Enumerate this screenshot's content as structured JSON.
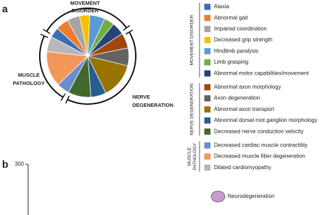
{
  "chart_data": [
    {
      "type": "pie",
      "panel_label": "a",
      "groups": [
        {
          "name": "MOVEMENT DISORDER",
          "categories": [
            "Ataxia",
            "Abnormal gait",
            "Impaired coordination",
            "Decreased grip strength",
            "Hindlimb paralysis",
            "Limb grasping",
            "Abnormal motor capabilities/movement"
          ],
          "values": [
            4,
            5,
            5,
            4,
            6,
            4,
            5
          ],
          "colors": [
            "#3a6fb7",
            "#ef7d31",
            "#a5a5a5",
            "#f5c000",
            "#5b9bd5",
            "#70ad47",
            "#264478"
          ]
        },
        {
          "name": "NERVE DEGENERATION",
          "categories": [
            "Abnormal axon morphology",
            "Axon degeneration",
            "Abnormal axon transport",
            "Abnormal dorsal root ganglion morphology",
            "Decreased nerve conduction velocity"
          ],
          "values": [
            6,
            7,
            14,
            6,
            9
          ],
          "colors": [
            "#9e480e",
            "#636363",
            "#997300",
            "#255e91",
            "#43682b"
          ]
        },
        {
          "name": "MUSCLE PATHOLOGY",
          "categories": [
            "Decreased cardiac muscle contractility",
            "Decreased muscle fiber degeneration",
            "Dilated cardiomyopathy"
          ],
          "values": [
            5,
            14,
            6
          ],
          "colors": [
            "#698ed0",
            "#f1975a",
            "#b7b7b7"
          ]
        }
      ]
    },
    {
      "type": "line",
      "panel_label": "b",
      "ylim": [
        0,
        300
      ],
      "yticks": [
        300
      ],
      "series": [
        {
          "name": "Neurodegeneration",
          "color": "#c89bd0"
        }
      ]
    }
  ]
}
